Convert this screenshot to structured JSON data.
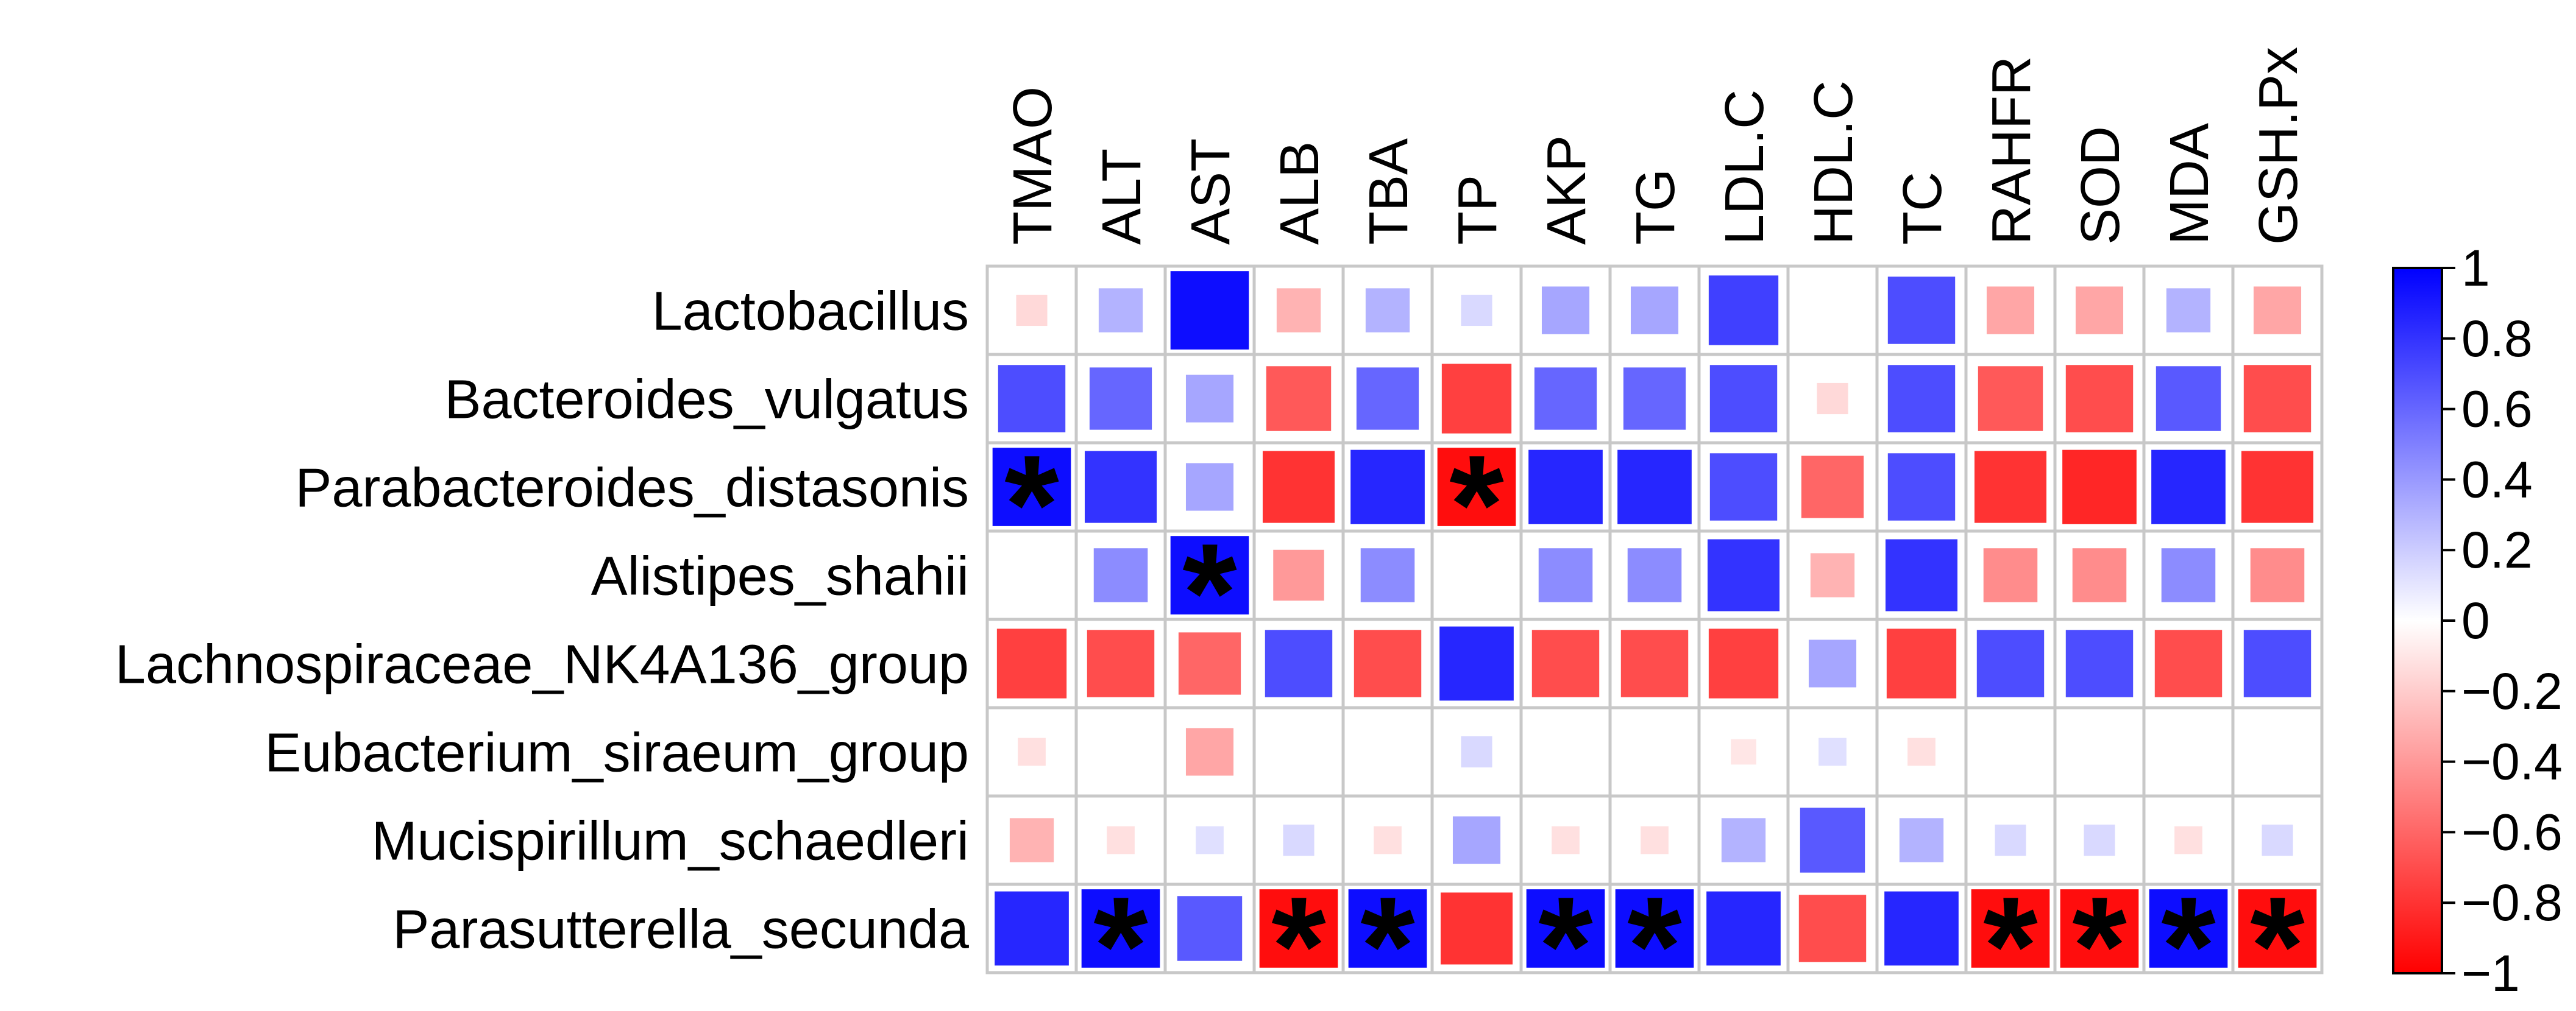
{
  "chart_data": {
    "type": "heatmap",
    "title": "",
    "rows": [
      "Lactobacillus",
      "Bacteroides_vulgatus",
      "Parabacteroides_distasonis",
      "Alistipes_shahii",
      "Lachnospiraceae_NK4A136_group",
      "Eubacterium_siraeum_group",
      "Mucispirillum_schaedleri",
      "Parasutterella_secunda"
    ],
    "columns": [
      "TMAO",
      "ALT",
      "AST",
      "ALB",
      "TBA",
      "TP",
      "AKP",
      "TG",
      "LDL.C",
      "HDL.C",
      "TC",
      "RAHFR",
      "SOD",
      "MDA",
      "GSH.Px"
    ],
    "values": [
      [
        -0.15,
        0.3,
        0.95,
        -0.3,
        0.3,
        0.15,
        0.35,
        0.35,
        0.75,
        0.0,
        0.7,
        -0.35,
        -0.35,
        0.3,
        -0.35
      ],
      [
        0.7,
        0.6,
        0.35,
        -0.65,
        0.6,
        -0.75,
        0.6,
        0.6,
        0.7,
        -0.15,
        0.7,
        -0.65,
        -0.7,
        0.65,
        -0.7
      ],
      [
        0.95,
        0.8,
        0.35,
        -0.8,
        0.85,
        -0.95,
        0.85,
        0.85,
        0.7,
        -0.6,
        0.7,
        -0.8,
        -0.85,
        0.85,
        -0.8
      ],
      [
        0.0,
        0.45,
        0.95,
        -0.4,
        0.45,
        0.0,
        0.45,
        0.45,
        0.8,
        -0.3,
        0.8,
        -0.45,
        -0.45,
        0.45,
        -0.45
      ],
      [
        -0.75,
        -0.7,
        -0.6,
        0.7,
        -0.7,
        0.85,
        -0.7,
        -0.7,
        -0.75,
        0.35,
        -0.75,
        0.7,
        0.7,
        -0.7,
        0.7
      ],
      [
        -0.12,
        0.0,
        -0.35,
        0.0,
        0.0,
        0.15,
        0.0,
        0.0,
        -0.1,
        0.12,
        -0.12,
        0.0,
        0.0,
        0.0,
        0.0
      ],
      [
        -0.3,
        -0.12,
        0.12,
        0.15,
        -0.12,
        0.35,
        -0.12,
        -0.12,
        0.3,
        0.65,
        0.3,
        0.15,
        0.15,
        -0.12,
        0.15
      ],
      [
        0.85,
        0.95,
        0.65,
        -0.95,
        0.95,
        -0.8,
        0.95,
        0.95,
        0.85,
        -0.7,
        0.85,
        -0.95,
        -0.95,
        0.95,
        -0.95
      ]
    ],
    "significance": [
      [
        false,
        false,
        false,
        false,
        false,
        false,
        false,
        false,
        false,
        false,
        false,
        false,
        false,
        false,
        false
      ],
      [
        false,
        false,
        false,
        false,
        false,
        false,
        false,
        false,
        false,
        false,
        false,
        false,
        false,
        false,
        false
      ],
      [
        true,
        false,
        false,
        false,
        false,
        true,
        false,
        false,
        false,
        false,
        false,
        false,
        false,
        false,
        false
      ],
      [
        false,
        false,
        true,
        false,
        false,
        false,
        false,
        false,
        false,
        false,
        false,
        false,
        false,
        false,
        false
      ],
      [
        false,
        false,
        false,
        false,
        false,
        false,
        false,
        false,
        false,
        false,
        false,
        false,
        false,
        false,
        false
      ],
      [
        false,
        false,
        false,
        false,
        false,
        false,
        false,
        false,
        false,
        false,
        false,
        false,
        false,
        false,
        false
      ],
      [
        false,
        false,
        false,
        false,
        false,
        false,
        false,
        false,
        false,
        false,
        false,
        false,
        false,
        false,
        false
      ],
      [
        false,
        true,
        false,
        true,
        true,
        false,
        true,
        true,
        false,
        false,
        false,
        true,
        true,
        true,
        true
      ]
    ],
    "significance_marker": "*",
    "value_range": [
      -1,
      1
    ],
    "colorbar": {
      "ticks": [
        1,
        0.8,
        0.6,
        0.4,
        0.2,
        0,
        -0.2,
        -0.4,
        -0.6,
        -0.8,
        -1
      ],
      "tick_labels": [
        "1",
        "0.8",
        "0.6",
        "0.4",
        "0.2",
        "0",
        "−0.2",
        "−0.4",
        "−0.6",
        "−0.8",
        "−1"
      ],
      "low_color": "#ff0000",
      "mid_color": "#ffffff",
      "high_color": "#0000ff"
    },
    "grid_color": "#c8c8c8",
    "legend_position": "right"
  }
}
